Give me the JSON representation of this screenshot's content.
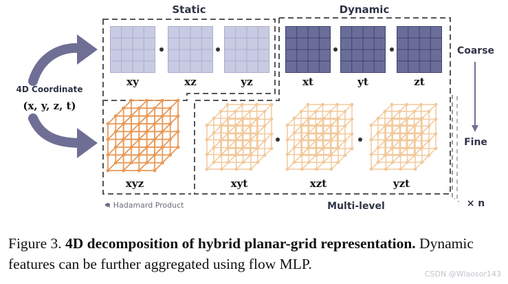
{
  "labels": {
    "static": "Static",
    "dynamic": "Dynamic",
    "coordinate_title": "4D Coordinate",
    "coordinate_vars": "(x, y, z, t)",
    "coarse": "Coarse",
    "fine": "Fine",
    "hadamard_legend": "Hadamard Product",
    "multi_level": "Multi-level",
    "times_n": "× n"
  },
  "planes": {
    "static": [
      "xy",
      "xz",
      "yz"
    ],
    "dynamic": [
      "xt",
      "yt",
      "zt"
    ]
  },
  "volumes": {
    "static": [
      "xyz"
    ],
    "dynamic": [
      "xyt",
      "xzt",
      "yzt"
    ]
  },
  "caption": {
    "prefix": "Figure 3.",
    "title": "4D decomposition of hybrid planar-grid representation.",
    "body": "Dynamic features can be further aggregated using flow MLP."
  },
  "watermark": "CSDN @Wlaosor143",
  "colors": {
    "static_plane": "#c9cbe3",
    "dynamic_plane": "#6a6d98",
    "cube_orange": "#e89a59",
    "cube_light": "#f2c99b",
    "arrow": "#6f6e95",
    "dash": "#555555"
  },
  "icons": {
    "arrow_in": "curved-arrow",
    "hadamard": "dot"
  }
}
